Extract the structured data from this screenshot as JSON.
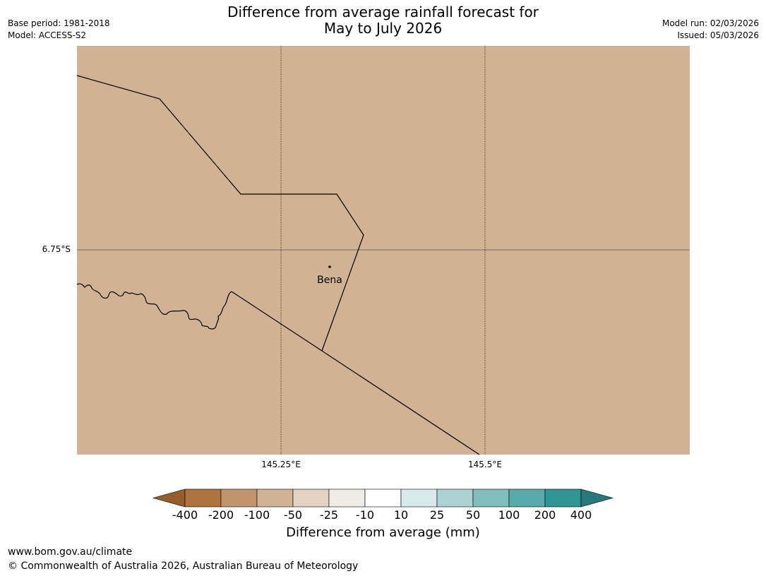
{
  "header": {
    "title_line1": "Difference from average rainfall forecast for",
    "title_line2": "May to July 2026",
    "base_period": "Base period: 1981-2018",
    "model": "Model: ACCESS-S2",
    "model_run": "Model run: 02/03/2026",
    "issued": "Issued: 05/03/2026"
  },
  "map": {
    "land_color": "#d1b293",
    "latitude_label": "6.75°S",
    "longitude_labels": [
      "145.25°E",
      "145.5°E"
    ],
    "places": [
      {
        "name": "Bena"
      }
    ]
  },
  "legend": {
    "title": "Difference from average (mm)",
    "tick_labels": [
      "-400",
      "-200",
      "-100",
      "-50",
      "-25",
      "-10",
      "10",
      "25",
      "50",
      "100",
      "200",
      "400"
    ],
    "low_extend_color": "#955e2a",
    "high_extend_color": "#26787a",
    "bins": [
      {
        "label": "-400 to -200",
        "color": "#ac733c"
      },
      {
        "label": "-200 to -100",
        "color": "#c1946b"
      },
      {
        "label": "-100 to -50",
        "color": "#d1b293"
      },
      {
        "label": "-50 to -25",
        "color": "#e4d1bf"
      },
      {
        "label": "-25 to -10",
        "color": "#efebe7"
      },
      {
        "label": "-10 to 10",
        "color": "#ffffff"
      },
      {
        "label": "10 to 25",
        "color": "#d7e9e9"
      },
      {
        "label": "25 to 50",
        "color": "#acd3d4"
      },
      {
        "label": "50 to 100",
        "color": "#80bebe"
      },
      {
        "label": "100 to 200",
        "color": "#58aaab"
      },
      {
        "label": "200 to 400",
        "color": "#2f9695"
      }
    ]
  },
  "footer": {
    "url": "www.bom.gov.au/climate",
    "copyright": "© Commonwealth of Australia 2026, Australian Bureau of Meteorology"
  }
}
